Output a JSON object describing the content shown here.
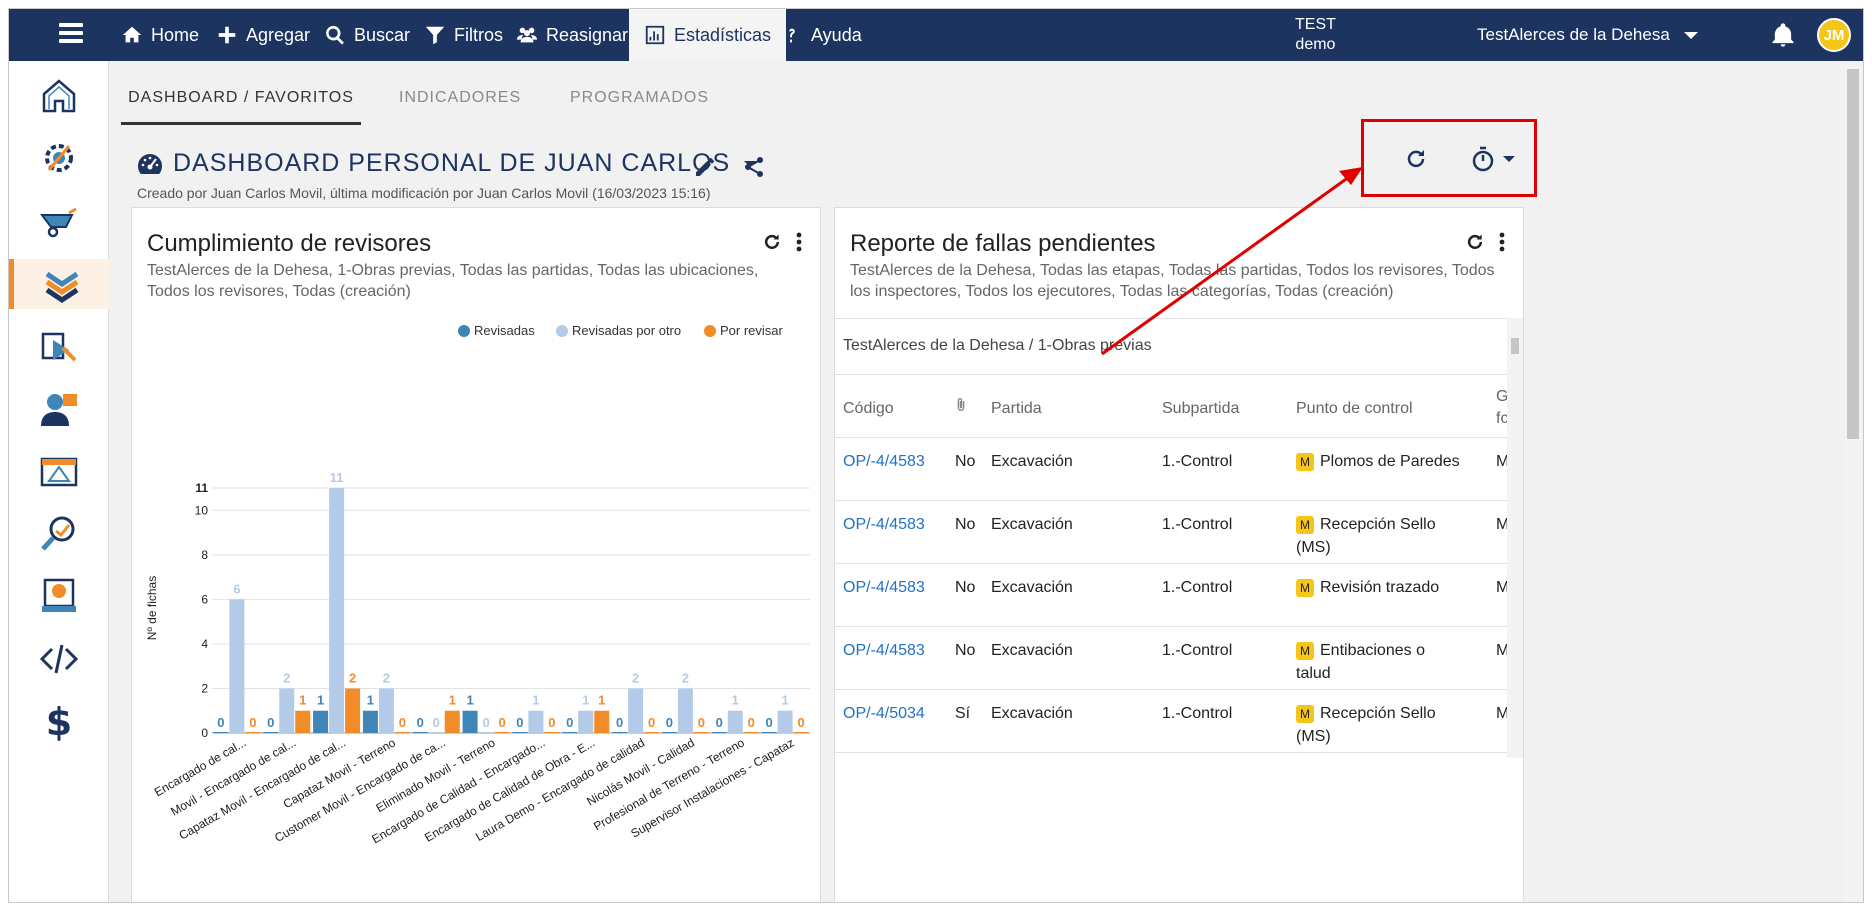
{
  "nav": {
    "items": [
      {
        "label": "Home",
        "icon": "home-icon"
      },
      {
        "label": "Agregar",
        "icon": "plus-icon"
      },
      {
        "label": "Buscar",
        "icon": "search-icon"
      },
      {
        "label": "Filtros",
        "icon": "filter-icon"
      },
      {
        "label": "Reasignar",
        "icon": "users-icon"
      },
      {
        "label": "Estadísticas",
        "icon": "chart-icon"
      },
      {
        "label": "Ayuda",
        "icon": "question-icon"
      }
    ],
    "active": "Estadísticas",
    "env_line1": "TEST",
    "env_line2": "demo",
    "project": "TestAlerces de la Dehesa",
    "avatar": "JM"
  },
  "tabs": [
    "DASHBOARD / FAVORITOS",
    "INDICADORES",
    "PROGRAMADOS"
  ],
  "dashboard": {
    "title": "DASHBOARD PERSONAL DE JUAN CARLOS",
    "subtitle": "Creado por Juan Carlos Movil, última modificación por Juan Carlos Movil (16/03/2023 15:16)"
  },
  "card1": {
    "title": "Cumplimiento de revisores",
    "subtitle": "TestAlerces de la Dehesa, 1-Obras previas, Todas las partidas, Todas las ubicaciones, Todos los revisores, Todas (creación)"
  },
  "card2": {
    "title": "Reporte de fallas pendientes",
    "subtitle": "TestAlerces de la Dehesa, Todas las etapas, Todas las partidas, Todos los revisores, Todos los inspectores, Todos los ejecutores, Todas las categorías, Todas (creación)",
    "path": "TestAlerces de la Dehesa / 1-Obras previas",
    "headers": [
      "Código",
      "Partida",
      "Subpartida",
      "Punto de control",
      "G",
      "fc"
    ],
    "rows": [
      {
        "code": "OP/-4/4583",
        "attach": "No",
        "partida": "Excavación",
        "subpartida": "1.-Control",
        "badge": "M",
        "punto": "Plomos de Paredes",
        "punto2": "",
        "g": "M"
      },
      {
        "code": "OP/-4/4583",
        "attach": "No",
        "partida": "Excavación",
        "subpartida": "1.-Control",
        "badge": "M",
        "punto": "Recepción Sello",
        "punto2": "(MS)",
        "g": "M"
      },
      {
        "code": "OP/-4/4583",
        "attach": "No",
        "partida": "Excavación",
        "subpartida": "1.-Control",
        "badge": "M",
        "punto": "Revisión trazado",
        "punto2": "",
        "g": "M"
      },
      {
        "code": "OP/-4/4583",
        "attach": "No",
        "partida": "Excavación",
        "subpartida": "1.-Control",
        "badge": "M",
        "punto": "Entibaciones o",
        "punto2": "talud",
        "g": "M"
      },
      {
        "code": "OP/-4/5034",
        "attach": "Sí",
        "partida": "Excavación",
        "subpartida": "1.-Control",
        "badge": "M",
        "punto": "Recepción Sello",
        "punto2": "(MS)",
        "g": "M"
      }
    ]
  },
  "colors": {
    "navy": "#1d3461",
    "revisadas": "#3f85b8",
    "revisadas_otro": "#b3cbe8",
    "por_revisar": "#f28c28",
    "highlight": "#e00000"
  },
  "chart_data": {
    "type": "bar",
    "ylabel": "Nº de fichas",
    "ylim": [
      0,
      11
    ],
    "yticks": [
      0,
      2,
      4,
      6,
      8,
      10,
      11
    ],
    "legend": "top-right",
    "grid": true,
    "categories": [
      "Encargado de cal...",
      "Movil - Encargado de cal...",
      "Capataz Movil - Encargado de cal...",
      "Capataz Movil - Terreno",
      "Customer Movil - Encargado de ca...",
      "Eliminado Movil - Terreno",
      "Encargado de Calidad - Encargado...",
      "Encargado de Calidad de Obra - E...",
      "Laura Demo - Encargado de calidad",
      "Nicolás Movil - Calidad",
      "Profesional de Terreno - Terreno",
      "Supervisor Instalaciones - Capataz"
    ],
    "series": [
      {
        "name": "Revisadas",
        "values": [
          0,
          0,
          1,
          1,
          0,
          1,
          0,
          0,
          0,
          0,
          0,
          0
        ]
      },
      {
        "name": "Revisadas por otro",
        "values": [
          6,
          2,
          11,
          2,
          0,
          0,
          1,
          1,
          2,
          2,
          1,
          1
        ]
      },
      {
        "name": "Por revisar",
        "values": [
          0,
          1,
          2,
          0,
          1,
          0,
          0,
          1,
          0,
          0,
          0,
          0
        ]
      }
    ]
  }
}
